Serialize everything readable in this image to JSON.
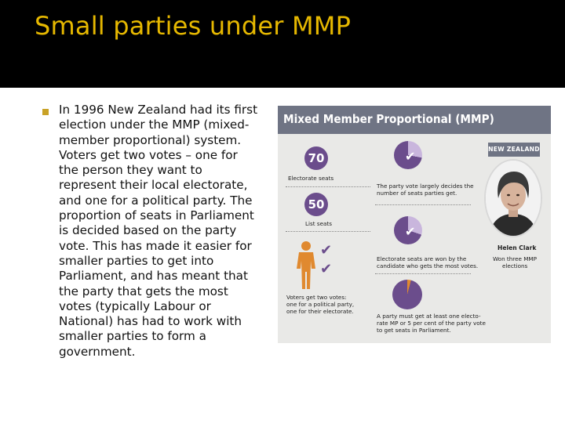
{
  "slide": {
    "title": "Small parties under MMP",
    "body_lines": [
      "In 1996 New Zealand had its first",
      "election under the MMP (mixed-",
      "member proportional) system.",
      "Voters get two votes – one for",
      "the person they want to",
      "represent their local electorate,",
      "and one for a political party. The",
      "proportion of seats in Parliament",
      "is decided based on the party",
      "vote. This has made it easier for",
      "smaller parties to get into",
      "Parliament, and has meant that",
      "the party that gets the most",
      "votes (typically Labour or",
      "National) has had to work with",
      "smaller parties to form a",
      "government."
    ]
  },
  "graphic": {
    "title": "Mixed Member Proportional (MMP)",
    "electorate": {
      "number": "70",
      "label": "Electorate seats"
    },
    "list": {
      "number": "50",
      "label": "List seats"
    },
    "voters_caption": [
      "Voters get two votes:",
      "one for a political party,",
      "one for their electorate."
    ],
    "pie1_caption": [
      "The party vote largely decides the",
      "number of seats parties get."
    ],
    "pie2_caption": [
      "Electorate seats are won by the",
      "candidate who gets the most votes."
    ],
    "pie3_caption": [
      "A party must get at least one electo-",
      "rate MP or 5 per cent of the party vote",
      "to get seats in Parliament."
    ],
    "country_tag": "NEW ZEALAND",
    "person_name": "Helen Clark",
    "person_caption": [
      "Won three MMP",
      "elections"
    ],
    "colors": {
      "header": "#6f7484",
      "purple": "#6b4d8c",
      "light_purple": "#c9b6dd",
      "orange": "#e0892f",
      "title_gold": "#e6b800"
    }
  }
}
